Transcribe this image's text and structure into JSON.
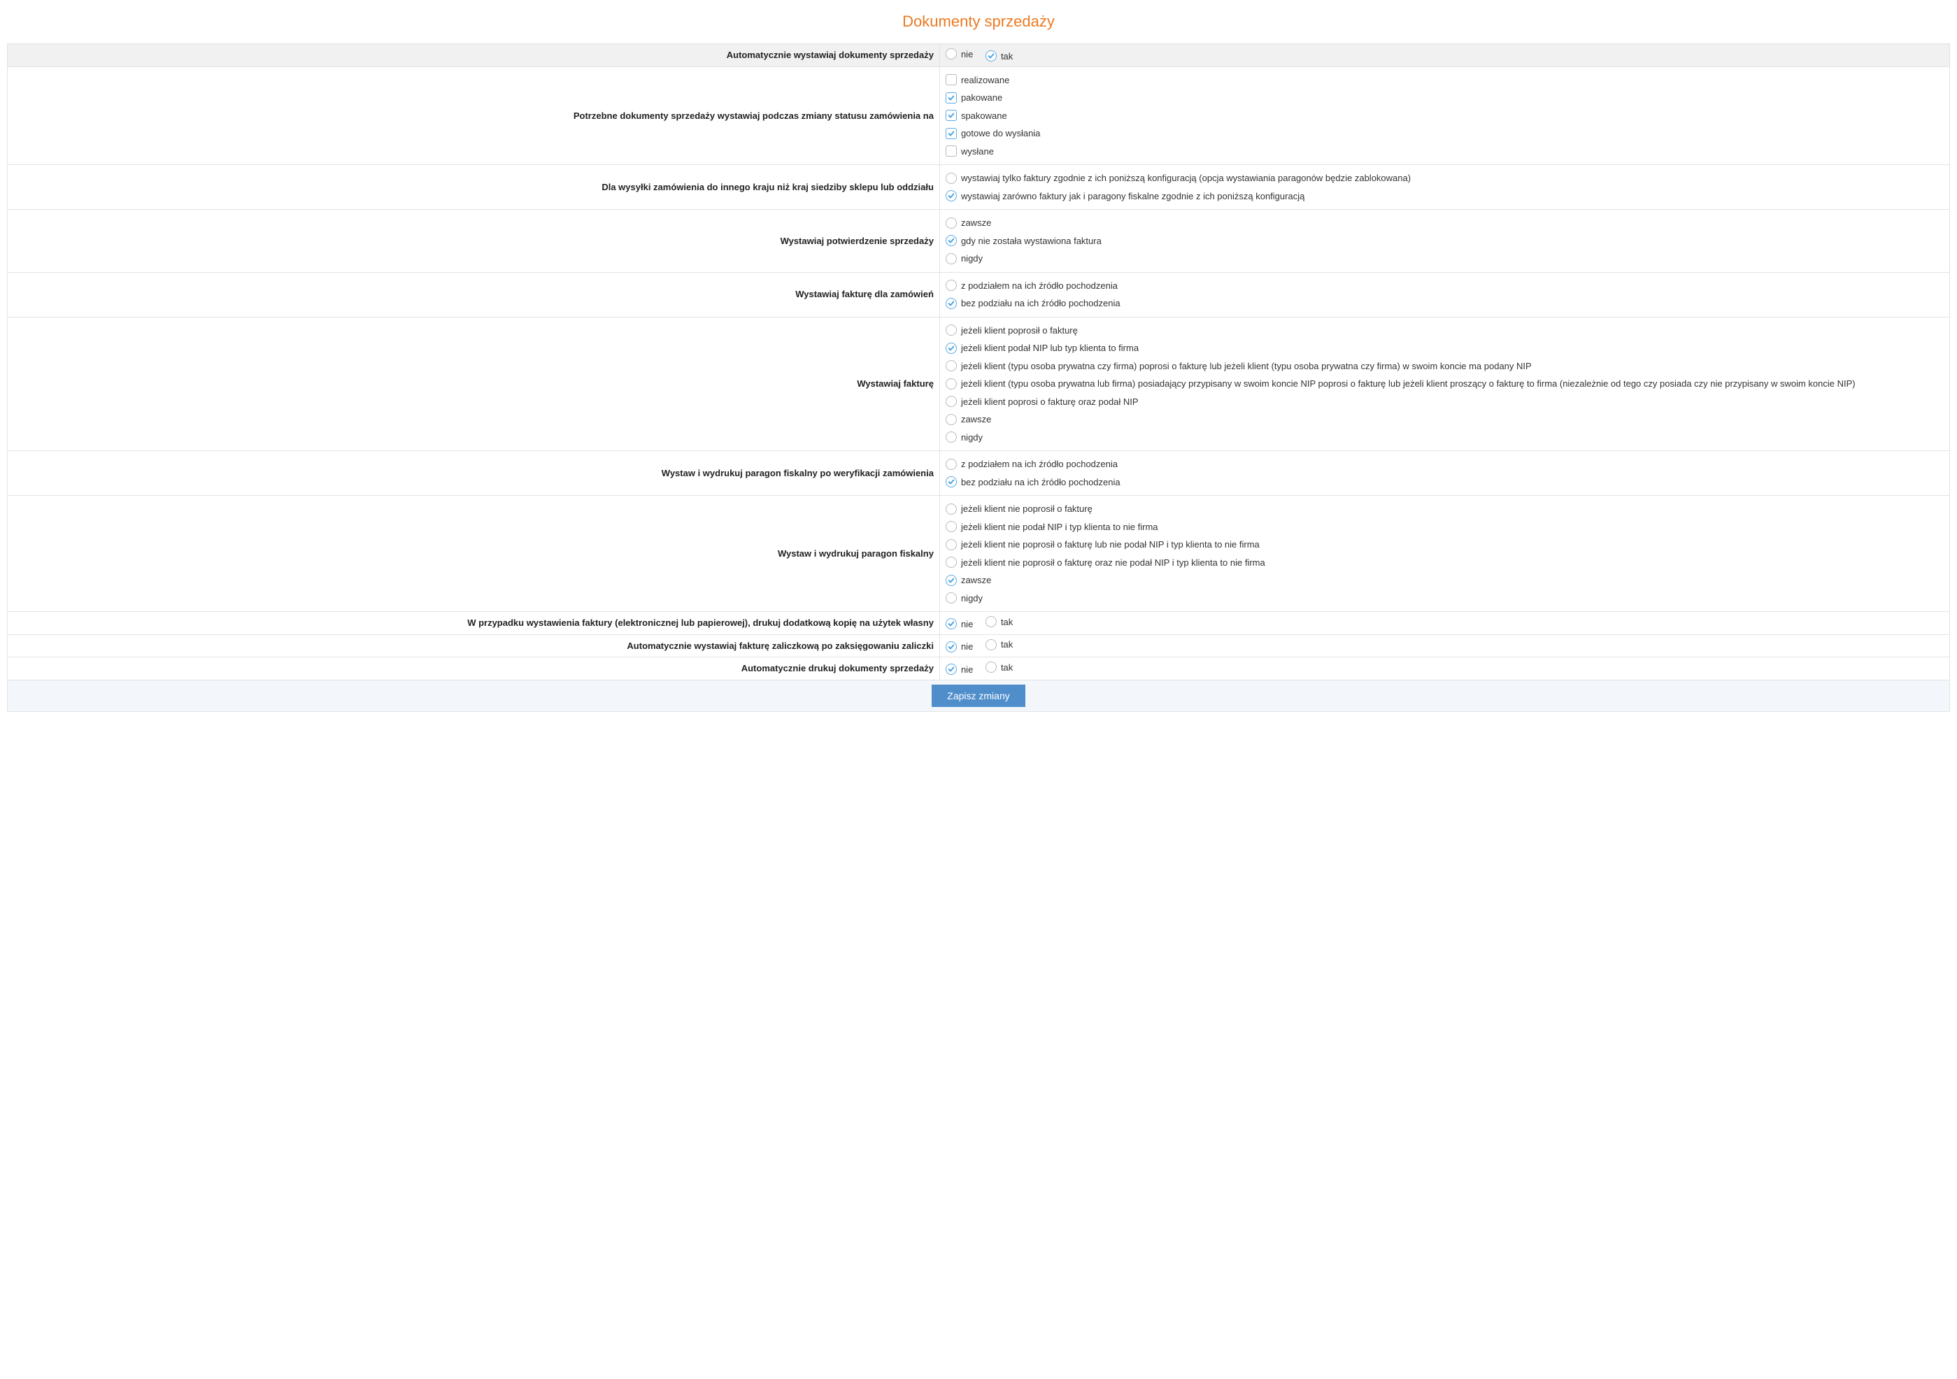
{
  "title": "Dokumenty sprzedaży",
  "colors": {
    "accent": "#ec7a23",
    "primary_btn": "#4f8ecb",
    "check": "#4aa3e0",
    "border": "#e3e3e3",
    "header_bg": "#f1f1f1",
    "footer_bg": "#f3f6fb"
  },
  "common": {
    "yes": "tak",
    "no": "nie"
  },
  "rows": {
    "auto_issue": {
      "label": "Automatycznie wystawiaj dokumenty sprzedaży",
      "value": "tak"
    },
    "status_change": {
      "label": "Potrzebne dokumenty sprzedaży wystawiaj podczas zmiany statusu zamówienia na",
      "options": [
        {
          "label": "realizowane",
          "checked": false
        },
        {
          "label": "pakowane",
          "checked": true
        },
        {
          "label": "spakowane",
          "checked": true
        },
        {
          "label": "gotowe do wysłania",
          "checked": true
        },
        {
          "label": "wysłane",
          "checked": false
        }
      ]
    },
    "foreign_ship": {
      "label": "Dla wysyłki zamówienia do innego kraju niż kraj siedziby sklepu lub oddziału",
      "options": [
        {
          "label": "wystawiaj tylko faktury zgodnie z ich poniższą konfiguracją (opcja wystawiania paragonów będzie zablokowana)",
          "selected": false
        },
        {
          "label": "wystawiaj zarówno faktury jak i paragony fiskalne zgodnie z ich poniższą konfiguracją",
          "selected": true
        }
      ]
    },
    "confirm_sale": {
      "label": "Wystawiaj potwierdzenie sprzedaży",
      "options": [
        {
          "label": "zawsze",
          "selected": false
        },
        {
          "label": "gdy nie została wystawiona faktura",
          "selected": true
        },
        {
          "label": "nigdy",
          "selected": false
        }
      ]
    },
    "invoice_for_orders": {
      "label": "Wystawiaj fakturę dla zamówień",
      "options": [
        {
          "label": "z podziałem na ich źródło pochodzenia",
          "selected": false
        },
        {
          "label": "bez podziału na ich źródło pochodzenia",
          "selected": true
        }
      ]
    },
    "issue_invoice": {
      "label": "Wystawiaj fakturę",
      "options": [
        {
          "label": "jeżeli klient poprosił o fakturę",
          "selected": false
        },
        {
          "label": "jeżeli klient podał NIP lub typ klienta to firma",
          "selected": true
        },
        {
          "label": "jeżeli klient (typu osoba prywatna czy firma) poprosi o fakturę lub jeżeli klient (typu osoba prywatna czy firma) w swoim koncie ma podany NIP",
          "selected": false
        },
        {
          "label": "jeżeli klient (typu osoba prywatna lub firma) posiadający przypisany w swoim koncie NIP poprosi o fakturę lub jeżeli klient proszący o fakturę to firma (niezależnie od tego czy posiada czy nie przypisany w swoim koncie NIP)",
          "selected": false
        },
        {
          "label": "jeżeli klient poprosi o fakturę oraz podał NIP",
          "selected": false
        },
        {
          "label": "zawsze",
          "selected": false
        },
        {
          "label": "nigdy",
          "selected": false
        }
      ]
    },
    "receipt_after_verify": {
      "label": "Wystaw i wydrukuj paragon fiskalny po weryfikacji zamówienia",
      "options": [
        {
          "label": "z podziałem na ich źródło pochodzenia",
          "selected": false
        },
        {
          "label": "bez podziału na ich źródło pochodzenia",
          "selected": true
        }
      ]
    },
    "print_receipt": {
      "label": "Wystaw i wydrukuj paragon fiskalny",
      "options": [
        {
          "label": "jeżeli klient nie poprosił o fakturę",
          "selected": false
        },
        {
          "label": "jeżeli klient nie podał NIP i typ klienta to nie firma",
          "selected": false
        },
        {
          "label": "jeżeli klient nie poprosił o fakturę lub nie podał NIP i typ klienta to nie firma",
          "selected": false
        },
        {
          "label": "jeżeli klient nie poprosił o fakturę oraz nie podał NIP i typ klienta to nie firma",
          "selected": false
        },
        {
          "label": "zawsze",
          "selected": true
        },
        {
          "label": "nigdy",
          "selected": false
        }
      ]
    },
    "extra_copy": {
      "label": "W przypadku wystawienia faktury (elektronicznej lub papierowej), drukuj dodatkową kopię na użytek własny",
      "value": "nie"
    },
    "advance_invoice": {
      "label": "Automatycznie wystawiaj fakturę zaliczkową po zaksięgowaniu zaliczki",
      "value": "nie"
    },
    "auto_print": {
      "label": "Automatycznie drukuj dokumenty sprzedaży",
      "value": "nie"
    }
  },
  "save_button": "Zapisz zmiany"
}
